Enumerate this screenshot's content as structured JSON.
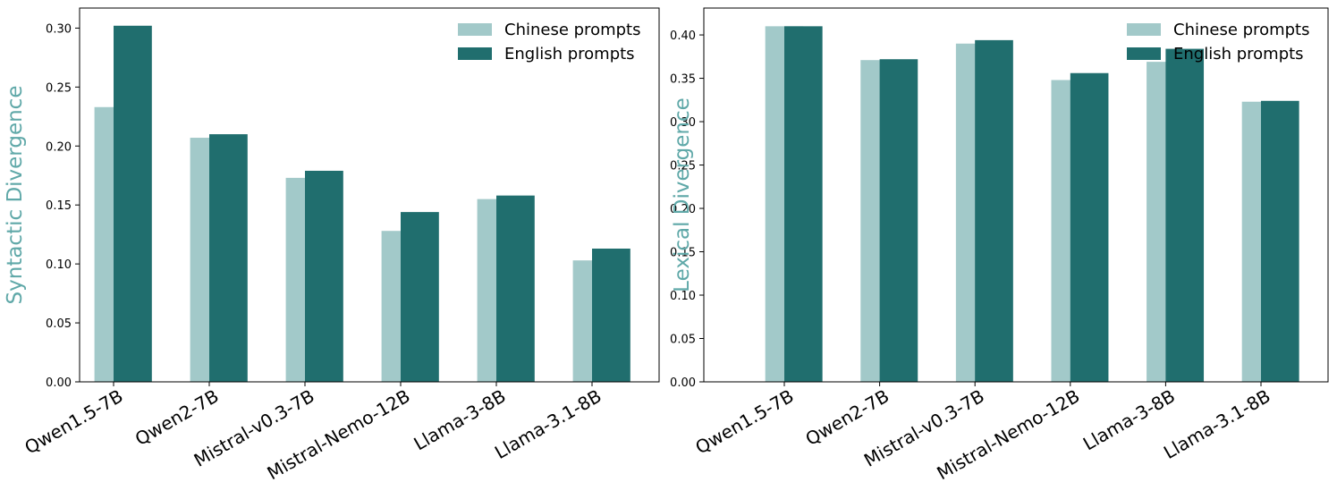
{
  "chart_data": [
    {
      "type": "bar",
      "ylabel": "Syntactic Divergence",
      "categories": [
        "Qwen1.5-7B",
        "Qwen2-7B",
        "Mistral-v0.3-7B",
        "Mistral-Nemo-12B",
        "Llama-3-8B",
        "Llama-3.1-8B"
      ],
      "series": [
        {
          "name": "Chinese prompts",
          "color": "#a2c9c9",
          "values": [
            0.233,
            0.207,
            0.173,
            0.128,
            0.155,
            0.103
          ]
        },
        {
          "name": "English prompts",
          "color": "#206e6e",
          "values": [
            0.302,
            0.21,
            0.179,
            0.144,
            0.158,
            0.113
          ]
        }
      ],
      "ylim": [
        0,
        0.317
      ],
      "yticks": [
        {
          "value": 0,
          "label": "0.00"
        },
        0.05,
        {
          "value": 0.1,
          "label": "0.10"
        },
        0.15,
        {
          "value": 0.2,
          "label": "0.20"
        },
        0.25,
        {
          "value": 0.3,
          "label": "0.30"
        }
      ],
      "legend": "upper right",
      "ylabel_color": "#5fa8a8"
    },
    {
      "type": "bar",
      "ylabel": "Lexical Divergence",
      "categories": [
        "Qwen1.5-7B",
        "Qwen2-7B",
        "Mistral-v0.3-7B",
        "Mistral-Nemo-12B",
        "Llama-3-8B",
        "Llama-3.1-8B"
      ],
      "series": [
        {
          "name": "Chinese prompts",
          "color": "#a2c9c9",
          "values": [
            0.41,
            0.371,
            0.39,
            0.348,
            0.369,
            0.323
          ]
        },
        {
          "name": "English prompts",
          "color": "#206e6e",
          "values": [
            0.41,
            0.372,
            0.394,
            0.356,
            0.384,
            0.324
          ]
        }
      ],
      "ylim": [
        0,
        0.431
      ],
      "yticks": [
        {
          "value": 0,
          "label": "0.00"
        },
        0.05,
        {
          "value": 0.1,
          "label": "0.10"
        },
        0.15,
        {
          "value": 0.2,
          "label": "0.20"
        },
        0.25,
        {
          "value": 0.3,
          "label": "0.30"
        },
        0.35,
        {
          "value": 0.4,
          "label": "0.40"
        }
      ],
      "legend": "upper right",
      "ylabel_color": "#5fa8a8"
    }
  ]
}
